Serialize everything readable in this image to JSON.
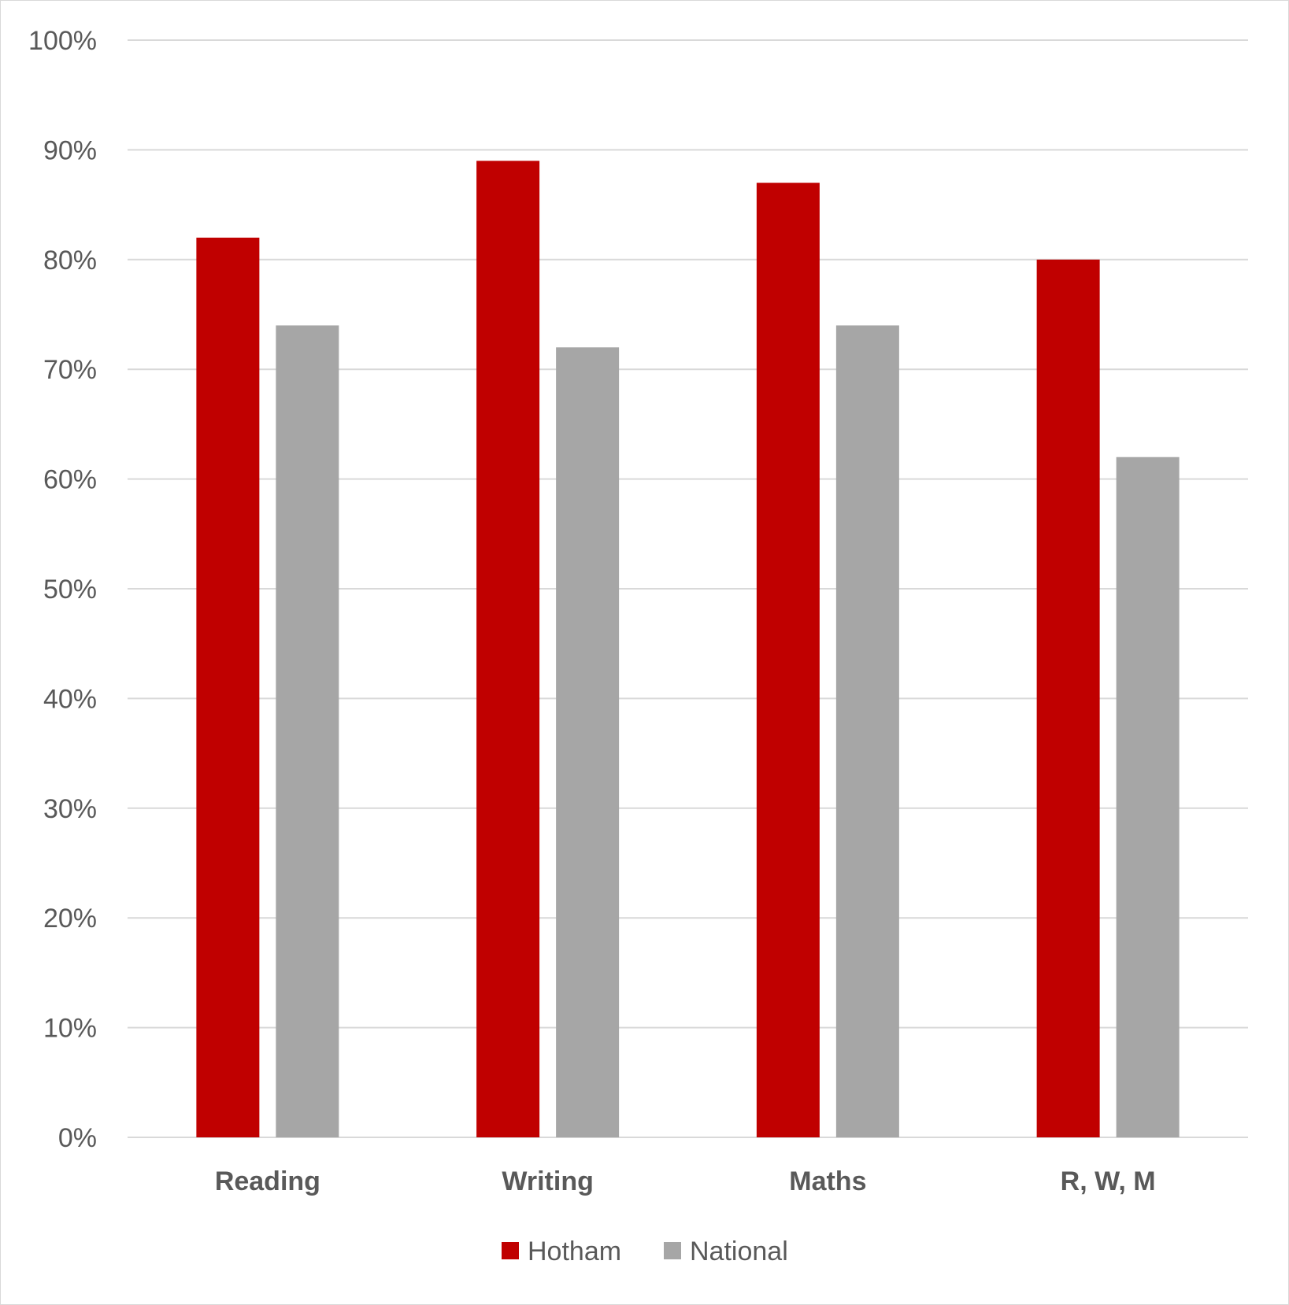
{
  "chart_data": {
    "type": "bar",
    "categories": [
      "Reading",
      "Writing",
      "Maths",
      "R, W, M"
    ],
    "series": [
      {
        "name": "Hotham",
        "values": [
          82,
          89,
          87,
          80
        ],
        "color": "#c00000"
      },
      {
        "name": "National",
        "values": [
          74,
          72,
          74,
          62
        ],
        "color": "#a6a6a6"
      }
    ],
    "ylim": [
      0,
      100
    ],
    "yticks": [
      0,
      10,
      20,
      30,
      40,
      50,
      60,
      70,
      80,
      90,
      100
    ],
    "ytick_labels": [
      "0%",
      "10%",
      "20%",
      "30%",
      "40%",
      "50%",
      "60%",
      "70%",
      "80%",
      "90%",
      "100%"
    ],
    "grid": true,
    "legend": "bottom-center"
  }
}
